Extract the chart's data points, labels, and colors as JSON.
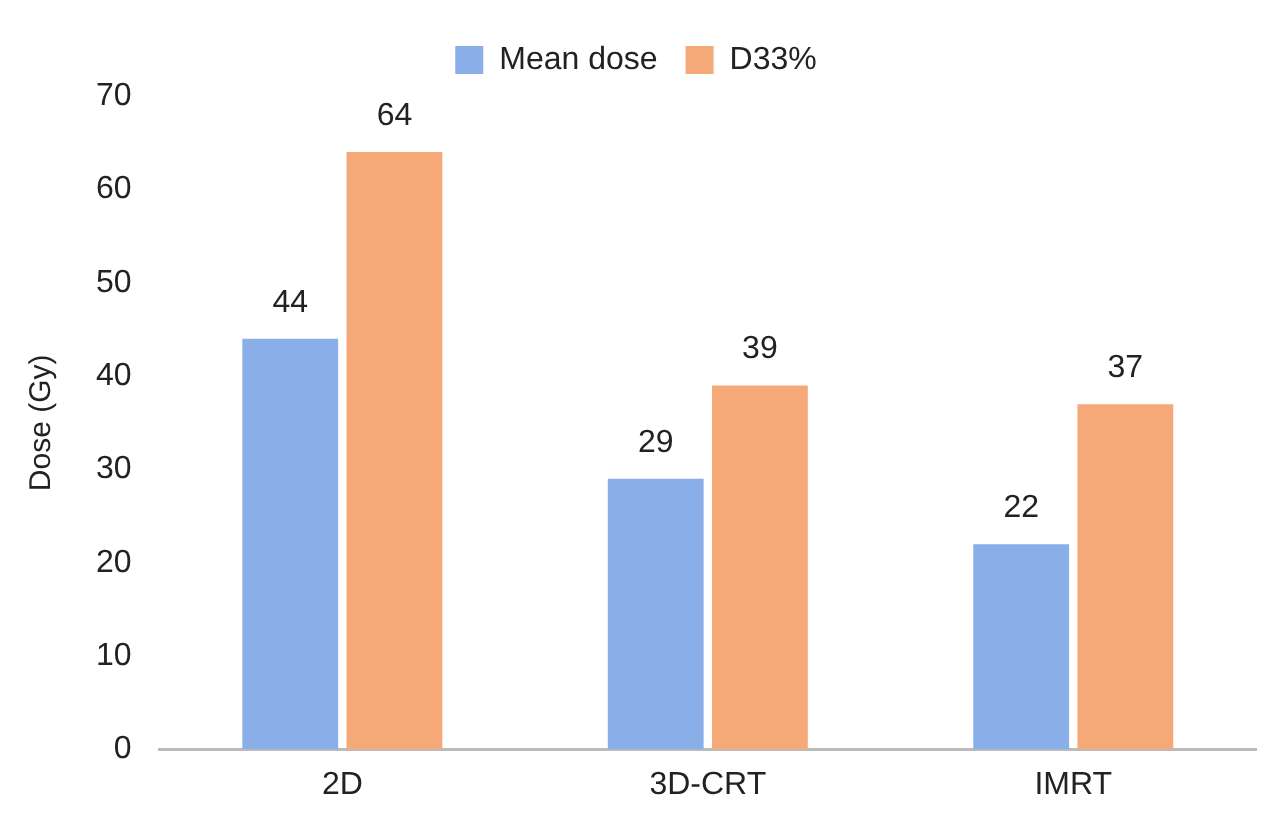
{
  "chart_data": {
    "type": "bar",
    "ylabel": "Dose (Gy)",
    "categories": [
      "2D",
      "3D-CRT",
      "IMRT"
    ],
    "series": [
      {
        "name": "Mean dose",
        "color": "#8aaee8",
        "values": [
          44,
          29,
          22
        ]
      },
      {
        "name": "D33%",
        "color": "#f5a878",
        "values": [
          64,
          39,
          37
        ]
      }
    ],
    "ylim": [
      0,
      70
    ],
    "yticks": [
      0,
      10,
      20,
      30,
      40,
      50,
      60,
      70
    ],
    "grid": false,
    "legend": "top",
    "data_labels": true
  }
}
